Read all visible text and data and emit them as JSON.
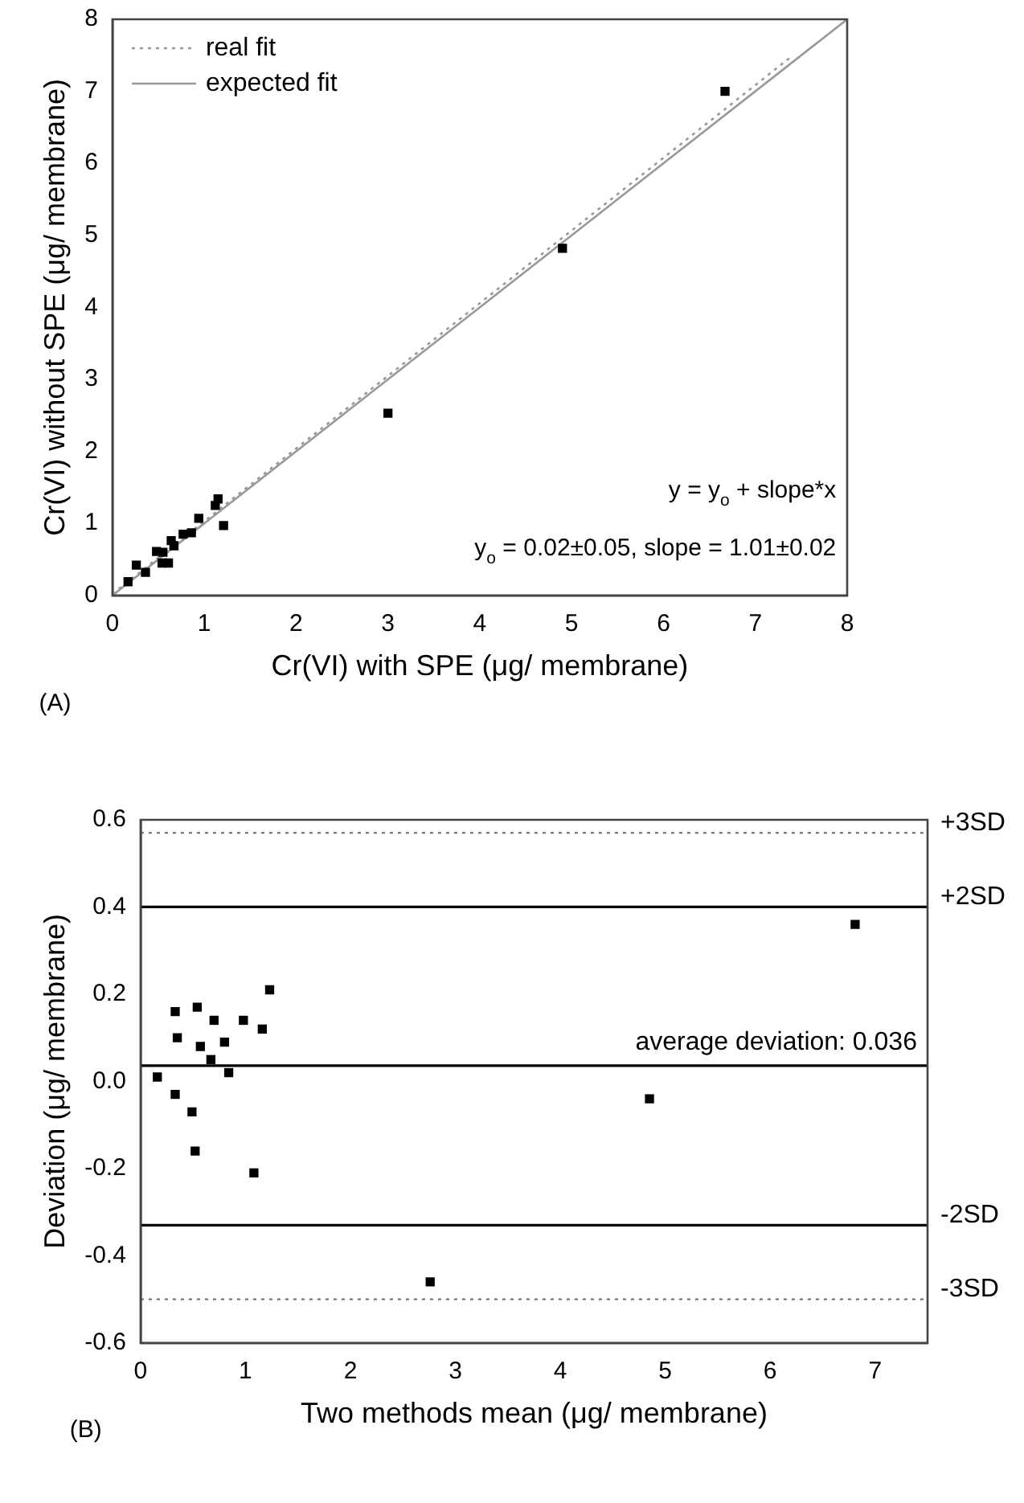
{
  "chart_data": [
    {
      "type": "scatter",
      "xlabel": "Cr(VI) with SPE (μg/ membrane)",
      "ylabel": "Cr(VI) without SPE (μg/ membrane)",
      "xlim": [
        0,
        8
      ],
      "ylim": [
        0,
        8
      ],
      "xticks": [
        0,
        1,
        2,
        3,
        4,
        5,
        6,
        7,
        8
      ],
      "yticks": [
        0,
        1,
        2,
        3,
        4,
        5,
        6,
        7,
        8
      ],
      "grid": false,
      "legend": "top left",
      "marker": "square",
      "series": [
        {
          "color": "#000000",
          "x": [
            0.17,
            0.26,
            0.36,
            0.48,
            0.55,
            0.54,
            0.61,
            0.64,
            0.67,
            0.77,
            0.86,
            0.94,
            1.12,
            1.15,
            1.21,
            3.0,
            4.9,
            6.67
          ],
          "values": [
            0.19,
            0.42,
            0.32,
            0.61,
            0.6,
            0.45,
            0.45,
            0.76,
            0.69,
            0.85,
            0.87,
            1.07,
            1.25,
            1.34,
            0.97,
            2.53,
            4.82,
            7.0
          ]
        },
        {
          "type": "line",
          "name": "real fit",
          "color": "#999999",
          "line_style": "dotted",
          "marker": "none",
          "x": [
            0,
            7.4
          ],
          "values": [
            0.02,
            7.49
          ]
        },
        {
          "type": "line",
          "name": "expected fit",
          "color": "#999999",
          "line_style": "solid",
          "marker": "none",
          "x": [
            0,
            8
          ],
          "values": [
            0,
            8
          ]
        }
      ],
      "annotations": [
        "y = y$_{o}$ + slope*x",
        "y$_{o}$ = 0.02±0.05, slope = 1.01±0.02",
        "(A)"
      ]
    },
    {
      "type": "scatter",
      "xlabel": "Two methods mean (μg/ membrane)",
      "ylabel": "Deviation (μg/ membrane)",
      "xlim": [
        0,
        7.5
      ],
      "ylim": [
        -0.6,
        0.6
      ],
      "xticks": [
        0,
        1,
        2,
        3,
        4,
        5,
        6,
        7
      ],
      "yticks": [
        -0.6,
        -0.4,
        -0.2,
        {
          "value": 0,
          "label": "0.0"
        },
        0.2,
        0.4,
        0.6
      ],
      "grid": false,
      "marker": "square",
      "series": [
        {
          "color": "#000000",
          "x": [
            0.16,
            0.33,
            0.33,
            0.35,
            0.49,
            0.52,
            0.54,
            0.57,
            0.67,
            0.7,
            0.8,
            0.84,
            0.98,
            1.08,
            1.16,
            1.23,
            2.76,
            4.85,
            6.81
          ],
          "values": [
            0.01,
            -0.03,
            0.16,
            0.1,
            -0.07,
            -0.16,
            0.17,
            0.08,
            0.05,
            0.14,
            0.09,
            0.02,
            0.14,
            -0.21,
            0.12,
            0.21,
            -0.46,
            -0.04,
            0.36
          ]
        }
      ],
      "ref_lines": [
        {
          "axis": "y",
          "value": 0.57,
          "label": "+3SD",
          "color": "#666666",
          "line_style": "dotted"
        },
        {
          "axis": "y",
          "value": 0.4,
          "label": "+2SD",
          "color": "#000000",
          "line_style": "solid"
        },
        {
          "axis": "y",
          "value": 0.036,
          "color": "#000000",
          "line_style": "solid"
        },
        {
          "axis": "y",
          "value": -0.33,
          "label": "-2SD",
          "color": "#000000",
          "line_style": "solid"
        },
        {
          "axis": "y",
          "value": -0.5,
          "label": "-3SD",
          "color": "#666666",
          "line_style": "dotted"
        }
      ],
      "annotations": [
        {
          "text": "average deviation: 0.036",
          "x": 7.4,
          "y": 0.036
        },
        "(B)"
      ]
    }
  ]
}
